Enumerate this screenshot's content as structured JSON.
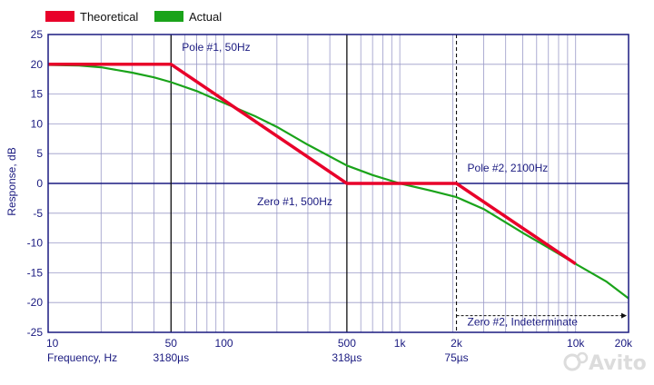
{
  "chart_data": {
    "type": "line",
    "xscale": "log",
    "xlim": [
      10,
      20000
    ],
    "ylim": [
      -25,
      25
    ],
    "xlabel": "Frequency, Hz",
    "ylabel": "Response, dB",
    "grid": true,
    "legend_position": "top-left",
    "x_ticks": [
      {
        "value": 10,
        "label": "10"
      },
      {
        "value": 50,
        "label": "50"
      },
      {
        "value": 100,
        "label": "100"
      },
      {
        "value": 500,
        "label": "500"
      },
      {
        "value": 1000,
        "label": "1k"
      },
      {
        "value": 2100,
        "label": "2k"
      },
      {
        "value": 10000,
        "label": "10k"
      },
      {
        "value": 20000,
        "label": "20k"
      }
    ],
    "x_sub_ticks": [
      {
        "value": 50,
        "label": "3180µs"
      },
      {
        "value": 500,
        "label": "318µs"
      },
      {
        "value": 2100,
        "label": "75µs"
      }
    ],
    "y_ticks": [
      25,
      20,
      15,
      10,
      5,
      0,
      -5,
      -10,
      -15,
      -20,
      -25
    ],
    "series": [
      {
        "name": "Theoretical",
        "color": "#e8002a",
        "x": [
          10,
          50,
          500,
          2100,
          10000
        ],
        "y": [
          20,
          20,
          0,
          0,
          -13.5
        ]
      },
      {
        "name": "Actual",
        "color": "#1aa31a",
        "x": [
          10,
          15,
          20,
          30,
          40,
          50,
          70,
          100,
          150,
          200,
          300,
          500,
          700,
          1000,
          1500,
          2100,
          3000,
          5000,
          7000,
          10000,
          15000,
          20000
        ],
        "y": [
          19.9,
          19.8,
          19.5,
          18.6,
          17.8,
          17.0,
          15.5,
          13.5,
          11.3,
          9.5,
          6.5,
          3.0,
          1.4,
          0,
          -1.2,
          -2.3,
          -4.3,
          -8.3,
          -10.8,
          -13.5,
          -16.5,
          -19.3
        ]
      }
    ],
    "annotations": [
      {
        "text": "Pole #1, 50Hz",
        "x": 50,
        "y": 20
      },
      {
        "text": "Zero #1, 500Hz",
        "x": 500,
        "y": 0
      },
      {
        "text": "Pole #2, 2100Hz",
        "x": 2100,
        "y": 0
      },
      {
        "text": "Zero #2, Indeterminate",
        "x": 2100,
        "y": -22
      }
    ]
  },
  "watermark": "Avito"
}
